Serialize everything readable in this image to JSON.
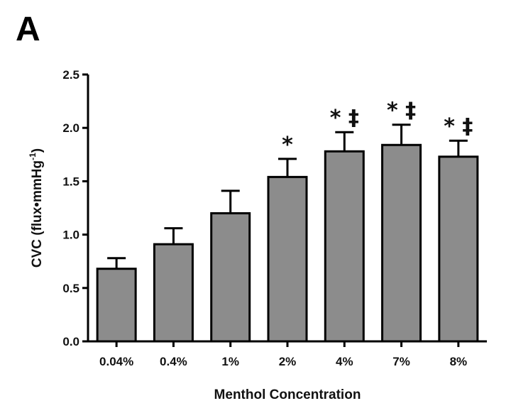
{
  "panel_label": "A",
  "chart_data": {
    "type": "bar",
    "xlabel": "Menthol Concentration",
    "ylabel_main": "CVC (flux•mmHg",
    "ylabel_sup": "-1",
    "ylabel_close": ")",
    "categories": [
      "0.04%",
      "0.4%",
      "1%",
      "2%",
      "4%",
      "7%",
      "8%"
    ],
    "values": [
      0.68,
      0.91,
      1.2,
      1.54,
      1.78,
      1.84,
      1.73
    ],
    "errors": [
      0.1,
      0.15,
      0.21,
      0.17,
      0.18,
      0.19,
      0.15
    ],
    "significance": [
      "",
      "",
      "",
      "*",
      "* ‡",
      "* ‡",
      "* ‡"
    ],
    "ylim": [
      0,
      2.5
    ],
    "yticks": [
      "0.0",
      "0.5",
      "1.0",
      "1.5",
      "2.0",
      "2.5"
    ],
    "colors": {
      "bar_fill": "#8c8c8c",
      "stroke": "#000000"
    }
  }
}
